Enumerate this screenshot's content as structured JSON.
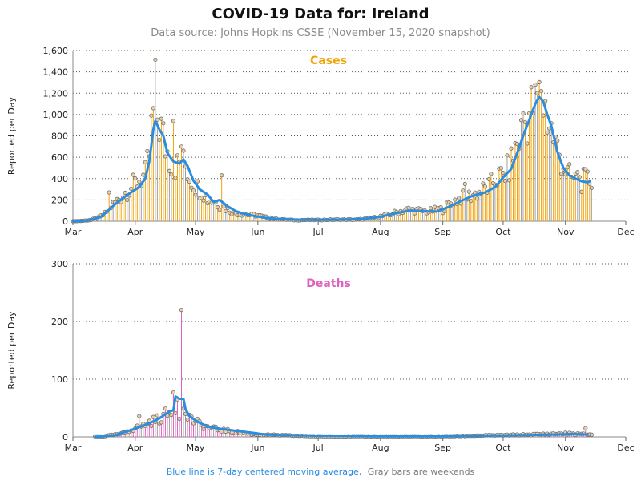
{
  "title": "COVID-19 Data for: Ireland",
  "subtitle": "Data source: Johns Hopkins CSSE (November 15, 2020 snapshot)",
  "footnote": {
    "blue_part": "Blue line is 7-day centered moving average,",
    "gray_part": "Gray bars are weekends"
  },
  "colors": {
    "cases": "#f0a30a",
    "deaths": "#e060c0",
    "average": "#2a8de0",
    "weekend": "#a0a0a0",
    "grid": "#555555",
    "point_fill": "#e8d0a8",
    "point_stroke": "#6e6e6e"
  },
  "chart_data": [
    {
      "type": "bar",
      "title": "Cases",
      "ylabel": "Reported per Day",
      "ylim": [
        0,
        1600
      ],
      "yticks": [
        "0",
        "200",
        "400",
        "600",
        "800",
        "1,000",
        "1,200",
        "1,400",
        "1,600"
      ],
      "xticks": [
        "Mar",
        "Apr",
        "May",
        "Jun",
        "Jul",
        "Aug",
        "Sep",
        "Oct",
        "Nov",
        "Dec"
      ],
      "grid": true,
      "start_date": "2020-03-01",
      "end_date": "2020-11-14",
      "series": [
        {
          "name": "Cases",
          "key_points": [
            [
              "2020-03-01",
              0
            ],
            [
              "2020-03-05",
              3
            ],
            [
              "2020-03-10",
              12
            ],
            [
              "2020-03-14",
              35
            ],
            [
              "2020-03-17",
              70
            ],
            [
              "2020-03-20",
              140
            ],
            [
              "2020-03-23",
              190
            ],
            [
              "2020-03-26",
              250
            ],
            [
              "2020-03-30",
              320
            ],
            [
              "2020-04-03",
              390
            ],
            [
              "2020-04-06",
              430
            ],
            [
              "2020-04-08",
              620
            ],
            [
              "2020-04-10",
              820
            ],
            [
              "2020-04-11",
              930
            ],
            [
              "2020-04-12",
              980
            ],
            [
              "2020-04-14",
              860
            ],
            [
              "2020-04-16",
              700
            ],
            [
              "2020-04-18",
              600
            ],
            [
              "2020-04-20",
              540
            ],
            [
              "2020-04-22",
              520
            ],
            [
              "2020-04-24",
              560
            ],
            [
              "2020-04-26",
              520
            ],
            [
              "2020-04-28",
              420
            ],
            [
              "2020-05-01",
              330
            ],
            [
              "2020-05-04",
              290
            ],
            [
              "2020-05-07",
              200
            ],
            [
              "2020-05-10",
              190
            ],
            [
              "2020-05-13",
              150
            ],
            [
              "2020-05-16",
              120
            ],
            [
              "2020-05-20",
              80
            ],
            [
              "2020-05-24",
              70
            ],
            [
              "2020-05-28",
              60
            ],
            [
              "2020-06-01",
              55
            ],
            [
              "2020-06-05",
              35
            ],
            [
              "2020-06-10",
              22
            ],
            [
              "2020-06-15",
              15
            ],
            [
              "2020-06-20",
              10
            ],
            [
              "2020-06-25",
              12
            ],
            [
              "2020-07-01",
              12
            ],
            [
              "2020-07-10",
              15
            ],
            [
              "2020-07-20",
              15
            ],
            [
              "2020-07-27",
              25
            ],
            [
              "2020-08-01",
              45
            ],
            [
              "2020-08-05",
              60
            ],
            [
              "2020-08-10",
              90
            ],
            [
              "2020-08-15",
              110
            ],
            [
              "2020-08-20",
              100
            ],
            [
              "2020-08-25",
              90
            ],
            [
              "2020-08-29",
              110
            ],
            [
              "2020-09-01",
              110
            ],
            [
              "2020-09-05",
              170
            ],
            [
              "2020-09-10",
              220
            ],
            [
              "2020-09-15",
              240
            ],
            [
              "2020-09-20",
              280
            ],
            [
              "2020-09-24",
              320
            ],
            [
              "2020-09-27",
              400
            ],
            [
              "2020-10-01",
              430
            ],
            [
              "2020-10-04",
              500
            ],
            [
              "2020-10-07",
              680
            ],
            [
              "2020-10-10",
              830
            ],
            [
              "2020-10-13",
              980
            ],
            [
              "2020-10-16",
              1080
            ],
            [
              "2020-10-18",
              1160
            ],
            [
              "2020-10-20",
              1130
            ],
            [
              "2020-10-22",
              1060
            ],
            [
              "2020-10-24",
              920
            ],
            [
              "2020-10-27",
              720
            ],
            [
              "2020-10-30",
              580
            ],
            [
              "2020-11-02",
              440
            ],
            [
              "2020-11-05",
              390
            ],
            [
              "2020-11-08",
              380
            ],
            [
              "2020-11-10",
              380
            ],
            [
              "2020-11-14",
              385
            ]
          ],
          "spikes": [
            [
              "2020-04-11",
              1515
            ],
            [
              "2020-04-10",
              1060
            ],
            [
              "2020-04-09",
              990
            ],
            [
              "2020-04-20",
              940
            ],
            [
              "2020-04-24",
              700
            ],
            [
              "2020-05-14",
              430
            ],
            [
              "2020-03-19",
              270
            ],
            [
              "2020-10-17",
              1280
            ],
            [
              "2020-10-20",
              1220
            ],
            [
              "2020-10-11",
              1010
            ],
            [
              "2020-09-12",
              350
            ],
            [
              "2020-11-07",
              460
            ]
          ],
          "average_points": [
            [
              "2020-03-01",
              0
            ],
            [
              "2020-03-08",
              5
            ],
            [
              "2020-03-15",
              40
            ],
            [
              "2020-03-22",
              160
            ],
            [
              "2020-03-29",
              260
            ],
            [
              "2020-04-03",
              320
            ],
            [
              "2020-04-06",
              400
            ],
            [
              "2020-04-08",
              560
            ],
            [
              "2020-04-10",
              860
            ],
            [
              "2020-04-11",
              940
            ],
            [
              "2020-04-13",
              860
            ],
            [
              "2020-04-15",
              800
            ],
            [
              "2020-04-17",
              640
            ],
            [
              "2020-04-20",
              560
            ],
            [
              "2020-04-23",
              540
            ],
            [
              "2020-04-25",
              580
            ],
            [
              "2020-04-27",
              520
            ],
            [
              "2020-04-30",
              380
            ],
            [
              "2020-05-03",
              300
            ],
            [
              "2020-05-07",
              250
            ],
            [
              "2020-05-10",
              180
            ],
            [
              "2020-05-13",
              200
            ],
            [
              "2020-05-17",
              140
            ],
            [
              "2020-05-21",
              95
            ],
            [
              "2020-05-25",
              70
            ],
            [
              "2020-05-30",
              50
            ],
            [
              "2020-06-05",
              30
            ],
            [
              "2020-06-12",
              20
            ],
            [
              "2020-06-20",
              14
            ],
            [
              "2020-07-01",
              12
            ],
            [
              "2020-07-12",
              15
            ],
            [
              "2020-07-22",
              20
            ],
            [
              "2020-07-30",
              35
            ],
            [
              "2020-08-05",
              60
            ],
            [
              "2020-08-10",
              80
            ],
            [
              "2020-08-16",
              100
            ],
            [
              "2020-08-22",
              95
            ],
            [
              "2020-08-29",
              90
            ],
            [
              "2020-09-04",
              135
            ],
            [
              "2020-09-10",
              190
            ],
            [
              "2020-09-16",
              240
            ],
            [
              "2020-09-22",
              270
            ],
            [
              "2020-09-27",
              320
            ],
            [
              "2020-10-01",
              410
            ],
            [
              "2020-10-05",
              490
            ],
            [
              "2020-10-08",
              640
            ],
            [
              "2020-10-11",
              800
            ],
            [
              "2020-10-14",
              950
            ],
            [
              "2020-10-17",
              1100
            ],
            [
              "2020-10-19",
              1165
            ],
            [
              "2020-10-21",
              1120
            ],
            [
              "2020-10-23",
              1000
            ],
            [
              "2020-10-25",
              890
            ],
            [
              "2020-10-28",
              650
            ],
            [
              "2020-10-31",
              500
            ],
            [
              "2020-11-03",
              430
            ],
            [
              "2020-11-06",
              400
            ],
            [
              "2020-11-09",
              375
            ],
            [
              "2020-11-12",
              365
            ],
            [
              "2020-11-13",
              375
            ]
          ]
        }
      ]
    },
    {
      "type": "bar",
      "title": "Deaths",
      "ylabel": "Reported per Day",
      "ylim": [
        0,
        300
      ],
      "yticks": [
        "0",
        "100",
        "200",
        "300"
      ],
      "xticks": [
        "Mar",
        "Apr",
        "May",
        "Jun",
        "Jul",
        "Aug",
        "Sep",
        "Oct",
        "Nov",
        "Dec"
      ],
      "grid": true,
      "start_date": "2020-03-12",
      "end_date": "2020-11-14",
      "series": [
        {
          "name": "Deaths",
          "key_points": [
            [
              "2020-03-12",
              1
            ],
            [
              "2020-03-16",
              1
            ],
            [
              "2020-03-20",
              3
            ],
            [
              "2020-03-25",
              5
            ],
            [
              "2020-03-30",
              13
            ],
            [
              "2020-04-04",
              18
            ],
            [
              "2020-04-08",
              25
            ],
            [
              "2020-04-12",
              30
            ],
            [
              "2020-04-16",
              38
            ],
            [
              "2020-04-19",
              42
            ],
            [
              "2020-04-21",
              45
            ],
            [
              "2020-04-23",
              42
            ],
            [
              "2020-04-26",
              35
            ],
            [
              "2020-04-30",
              28
            ],
            [
              "2020-05-04",
              20
            ],
            [
              "2020-05-08",
              16
            ],
            [
              "2020-05-12",
              13
            ],
            [
              "2020-05-18",
              10
            ],
            [
              "2020-05-24",
              7
            ],
            [
              "2020-06-01",
              4
            ],
            [
              "2020-06-10",
              3
            ],
            [
              "2020-06-20",
              2
            ],
            [
              "2020-07-01",
              1
            ],
            [
              "2020-07-15",
              1
            ],
            [
              "2020-08-01",
              1
            ],
            [
              "2020-08-15",
              1
            ],
            [
              "2020-09-01",
              1
            ],
            [
              "2020-09-15",
              2
            ],
            [
              "2020-10-01",
              3
            ],
            [
              "2020-10-15",
              4
            ],
            [
              "2020-11-01",
              6
            ],
            [
              "2020-11-08",
              5
            ],
            [
              "2020-11-14",
              4
            ]
          ],
          "spikes": [
            [
              "2020-04-24",
              220
            ],
            [
              "2020-04-20",
              77
            ],
            [
              "2020-04-22",
              65
            ],
            [
              "2020-04-25",
              49
            ],
            [
              "2020-04-28",
              38
            ],
            [
              "2020-11-11",
              15
            ],
            [
              "2020-04-03",
              36
            ]
          ],
          "average_points": [
            [
              "2020-03-12",
              0
            ],
            [
              "2020-03-22",
              3
            ],
            [
              "2020-03-31",
              13
            ],
            [
              "2020-04-07",
              22
            ],
            [
              "2020-04-13",
              32
            ],
            [
              "2020-04-18",
              44
            ],
            [
              "2020-04-20",
              46
            ],
            [
              "2020-04-21",
              70
            ],
            [
              "2020-04-23",
              66
            ],
            [
              "2020-04-25",
              66
            ],
            [
              "2020-04-26",
              48
            ],
            [
              "2020-04-28",
              36
            ],
            [
              "2020-05-02",
              26
            ],
            [
              "2020-05-07",
              18
            ],
            [
              "2020-05-13",
              14
            ],
            [
              "2020-05-20",
              11
            ],
            [
              "2020-05-27",
              8
            ],
            [
              "2020-06-05",
              4
            ],
            [
              "2020-06-15",
              3
            ],
            [
              "2020-07-01",
              2
            ],
            [
              "2020-08-01",
              1
            ],
            [
              "2020-09-01",
              1
            ],
            [
              "2020-09-20",
              2
            ],
            [
              "2020-10-10",
              3
            ],
            [
              "2020-10-25",
              4
            ],
            [
              "2020-11-05",
              5
            ],
            [
              "2020-11-12",
              4
            ]
          ]
        }
      ]
    }
  ]
}
